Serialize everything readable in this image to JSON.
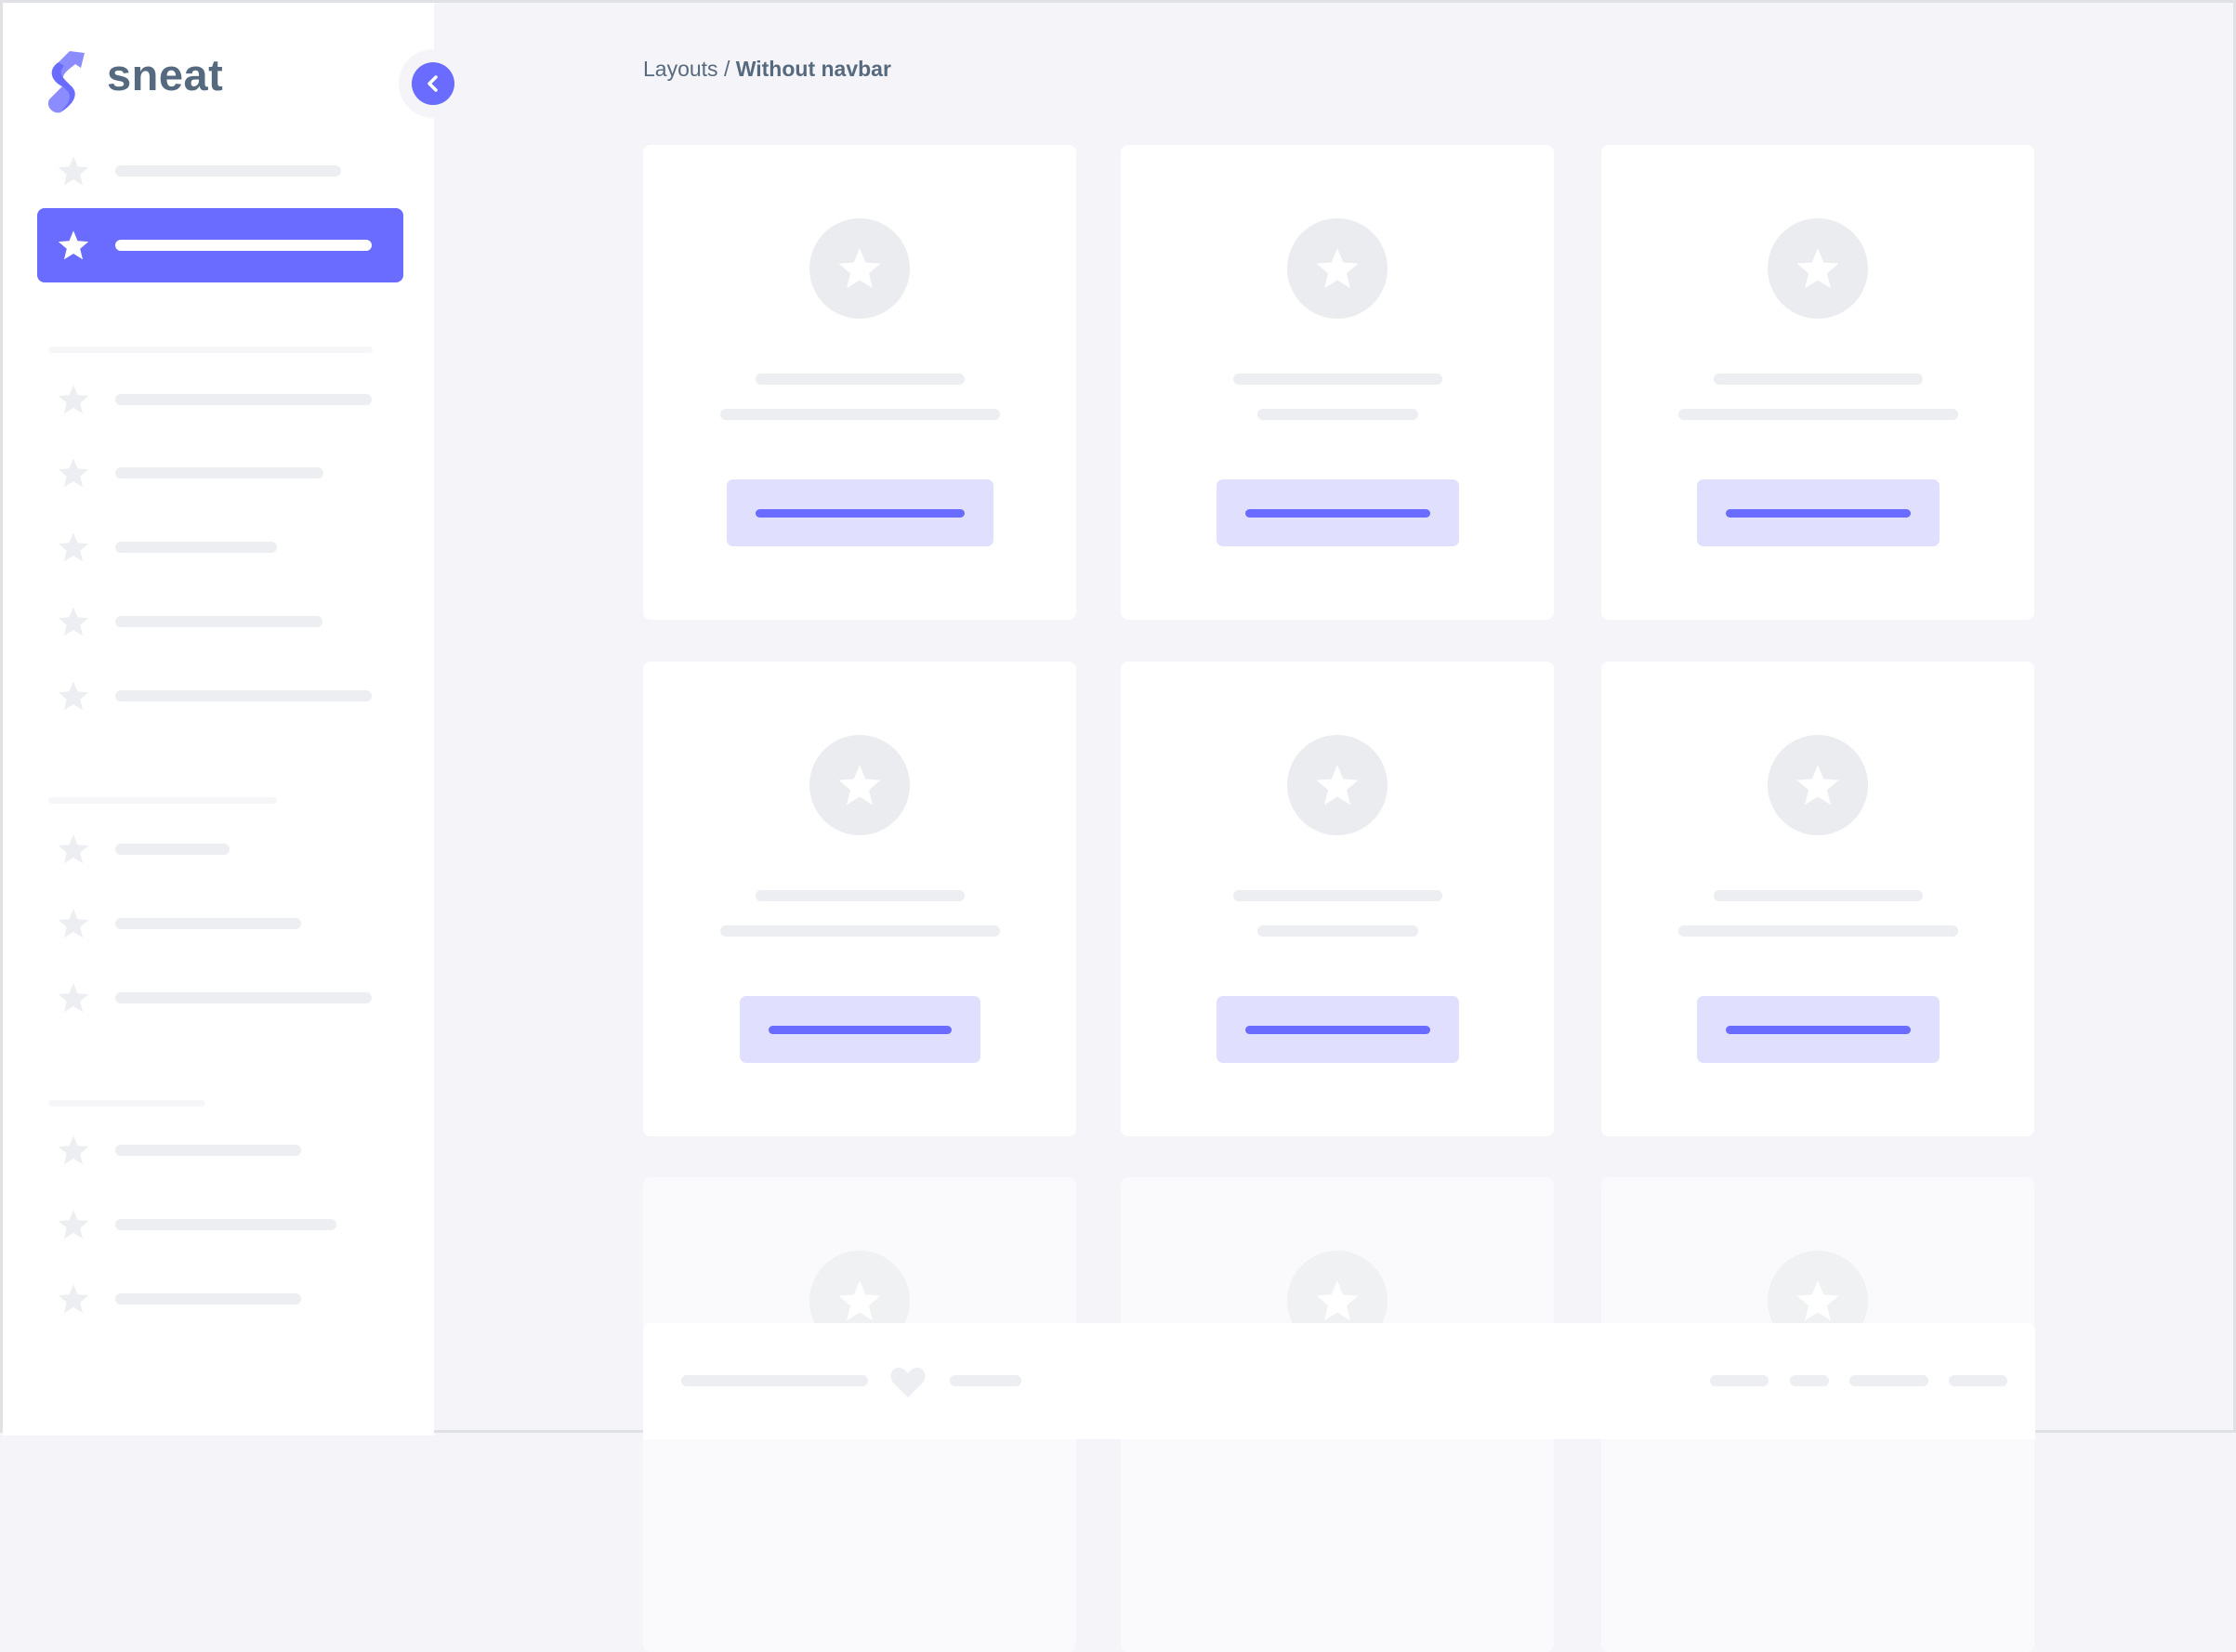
{
  "brand": {
    "name": "sneat"
  },
  "breadcrumb": {
    "parent": "Layouts",
    "separator": "/",
    "current": "Without navbar"
  },
  "colors": {
    "primary": "#696cff",
    "primary_light": "#e0e0fe",
    "background": "#f5f5f9",
    "placeholder": "#eceef1",
    "text": "#566a7f"
  },
  "icons": {
    "logo": "sneat-logo-icon",
    "toggle": "chevron-left-icon",
    "nav": "star-icon",
    "card": "star-icon",
    "footer": "heart-icon"
  },
  "sidebar": {
    "active_index": 1,
    "item_count": 13
  },
  "cards": {
    "count": 9
  }
}
